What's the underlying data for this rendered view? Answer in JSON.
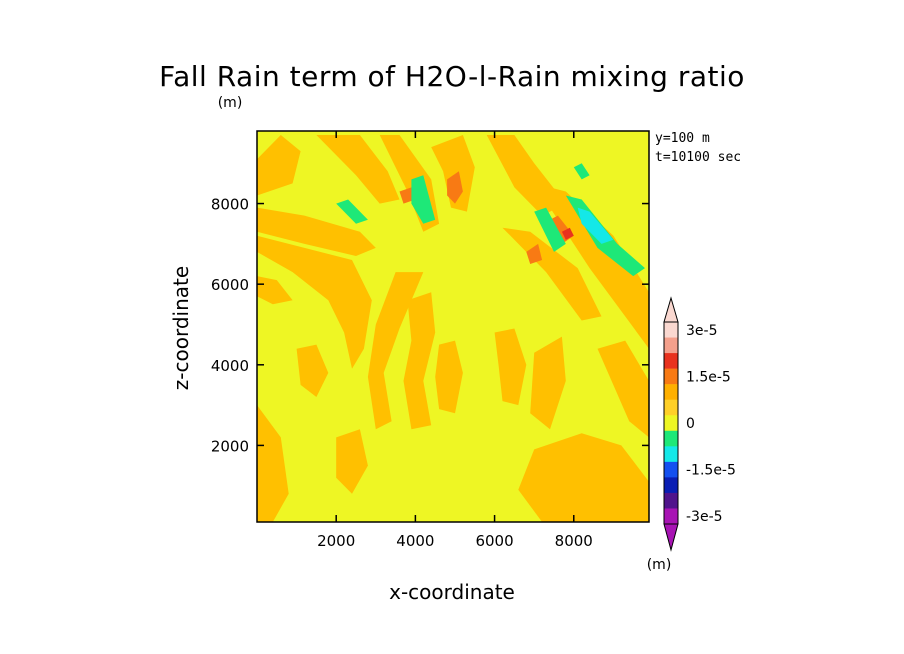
{
  "chart_data": {
    "type": "heatmap",
    "title": "Fall Rain term of H2O-l-Rain mixing ratio",
    "units_label": "(m)",
    "xlabel": "x-coordinate",
    "ylabel": "z-coordinate",
    "xlim": [
      0,
      9900
    ],
    "ylim": [
      100,
      9800
    ],
    "x_ticks": [
      2000,
      4000,
      6000,
      8000
    ],
    "y_ticks": [
      2000,
      4000,
      6000,
      8000
    ],
    "x_tick_labels": [
      "2000",
      "4000",
      "6000",
      "8000"
    ],
    "y_tick_labels": [
      "2000",
      "4000",
      "6000",
      "8000"
    ],
    "annotations": [
      "y=100 m",
      "t=10100 sec"
    ],
    "background_level_color": "#eef624",
    "colorbar": {
      "placement": "right",
      "unit": "(m)",
      "tick_labels": [
        "3e-5",
        "1.5e-5",
        "0",
        "-1.5e-5",
        "-3e-5"
      ],
      "tick_values": [
        3e-05,
        1.5e-05,
        0,
        -1.5e-05,
        -3e-05
      ],
      "levels_top_to_bottom": [
        {
          "color": "#fad8d0"
        },
        {
          "color": "#f4a08c"
        },
        {
          "color": "#e8321e"
        },
        {
          "color": "#f87a14"
        },
        {
          "color": "#ffb000"
        },
        {
          "color": "#ffd028"
        },
        {
          "color": "#eef624"
        },
        {
          "color": "#1ee878"
        },
        {
          "color": "#14e8e8"
        },
        {
          "color": "#1450f0"
        },
        {
          "color": "#0a1eb4"
        },
        {
          "color": "#50148c"
        },
        {
          "color": "#a814b4"
        }
      ]
    },
    "features": [
      {
        "level": "positive-small",
        "color": "#ffc000",
        "points": [
          [
            0,
            9100
          ],
          [
            600,
            9700
          ],
          [
            1100,
            9300
          ],
          [
            900,
            8500
          ],
          [
            0,
            8200
          ]
        ]
      },
      {
        "level": "positive-small",
        "color": "#ffc000",
        "points": [
          [
            0,
            7900
          ],
          [
            1200,
            7700
          ],
          [
            2600,
            7300
          ],
          [
            3000,
            6900
          ],
          [
            2500,
            6700
          ],
          [
            1200,
            7000
          ],
          [
            0,
            7300
          ]
        ]
      },
      {
        "level": "positive-small",
        "color": "#ffc000",
        "points": [
          [
            0,
            6800
          ],
          [
            900,
            6300
          ],
          [
            1800,
            5600
          ],
          [
            2200,
            4800
          ],
          [
            2400,
            3900
          ],
          [
            2700,
            4400
          ],
          [
            2900,
            5600
          ],
          [
            2400,
            6600
          ],
          [
            1200,
            6900
          ],
          [
            0,
            7200
          ]
        ]
      },
      {
        "level": "positive-small",
        "color": "#ffc000",
        "points": [
          [
            1500,
            9700
          ],
          [
            2600,
            9700
          ],
          [
            3300,
            8800
          ],
          [
            3600,
            8100
          ],
          [
            3100,
            8000
          ],
          [
            2500,
            8700
          ]
        ]
      },
      {
        "level": "positive-small",
        "color": "#ffc000",
        "points": [
          [
            3100,
            9700
          ],
          [
            3600,
            9700
          ],
          [
            4400,
            8600
          ],
          [
            4600,
            7500
          ],
          [
            4200,
            7300
          ],
          [
            3800,
            8300
          ]
        ]
      },
      {
        "level": "positive-small",
        "color": "#ffc000",
        "points": [
          [
            4400,
            9400
          ],
          [
            5200,
            9700
          ],
          [
            5500,
            8900
          ],
          [
            5300,
            7800
          ],
          [
            4900,
            7900
          ],
          [
            4700,
            8800
          ]
        ]
      },
      {
        "level": "positive-small",
        "color": "#ffc000",
        "points": [
          [
            5800,
            9700
          ],
          [
            6500,
            9700
          ],
          [
            7000,
            9000
          ],
          [
            7800,
            8000
          ],
          [
            7200,
            7700
          ],
          [
            6500,
            8400
          ]
        ]
      },
      {
        "level": "positive-small",
        "color": "#ffc000",
        "points": [
          [
            7000,
            8500
          ],
          [
            7800,
            8300
          ],
          [
            9000,
            7200
          ],
          [
            9900,
            5800
          ],
          [
            9900,
            4400
          ],
          [
            9300,
            5200
          ],
          [
            8400,
            6400
          ],
          [
            7600,
            7600
          ]
        ]
      },
      {
        "level": "positive-small",
        "color": "#ffc000",
        "points": [
          [
            6200,
            7400
          ],
          [
            6900,
            7300
          ],
          [
            8100,
            6400
          ],
          [
            8700,
            5200
          ],
          [
            8200,
            5100
          ],
          [
            7300,
            6300
          ]
        ]
      },
      {
        "level": "positive-small",
        "color": "#ffc000",
        "points": [
          [
            3500,
            6300
          ],
          [
            4200,
            6300
          ],
          [
            3600,
            4900
          ],
          [
            3200,
            3800
          ],
          [
            3400,
            2600
          ],
          [
            3000,
            2400
          ],
          [
            2800,
            3700
          ],
          [
            3000,
            5000
          ]
        ]
      },
      {
        "level": "positive-small",
        "color": "#ffc000",
        "points": [
          [
            3800,
            5600
          ],
          [
            4400,
            5800
          ],
          [
            4500,
            4800
          ],
          [
            4200,
            3600
          ],
          [
            4400,
            2500
          ],
          [
            3900,
            2400
          ],
          [
            3700,
            3600
          ],
          [
            3900,
            4600
          ]
        ]
      },
      {
        "level": "positive-small",
        "color": "#ffc000",
        "points": [
          [
            4600,
            4500
          ],
          [
            5000,
            4600
          ],
          [
            5200,
            3800
          ],
          [
            5000,
            2800
          ],
          [
            4600,
            2900
          ],
          [
            4500,
            3700
          ]
        ]
      },
      {
        "level": "positive-small",
        "color": "#ffc000",
        "points": [
          [
            6000,
            4800
          ],
          [
            6500,
            4900
          ],
          [
            6800,
            4000
          ],
          [
            6600,
            3000
          ],
          [
            6200,
            3100
          ],
          [
            6100,
            4000
          ]
        ]
      },
      {
        "level": "positive-small",
        "color": "#ffc000",
        "points": [
          [
            7000,
            4300
          ],
          [
            7700,
            4700
          ],
          [
            7800,
            3600
          ],
          [
            7400,
            2400
          ],
          [
            6900,
            2800
          ]
        ]
      },
      {
        "level": "positive-small",
        "color": "#ffc000",
        "points": [
          [
            6600,
            900
          ],
          [
            7000,
            1900
          ],
          [
            8200,
            2300
          ],
          [
            9200,
            2000
          ],
          [
            9900,
            1100
          ],
          [
            9900,
            100
          ],
          [
            7200,
            100
          ]
        ]
      },
      {
        "level": "positive-small",
        "color": "#ffc000",
        "points": [
          [
            0,
            3000
          ],
          [
            600,
            2200
          ],
          [
            800,
            800
          ],
          [
            400,
            100
          ],
          [
            0,
            100
          ]
        ]
      },
      {
        "level": "positive-small",
        "color": "#ffc000",
        "points": [
          [
            8600,
            4400
          ],
          [
            9300,
            4600
          ],
          [
            9900,
            3600
          ],
          [
            9900,
            2200
          ],
          [
            9400,
            2600
          ]
        ]
      },
      {
        "level": "positive-small",
        "color": "#ffc000",
        "points": [
          [
            2000,
            2200
          ],
          [
            2600,
            2400
          ],
          [
            2800,
            1500
          ],
          [
            2400,
            800
          ],
          [
            2000,
            1200
          ]
        ]
      },
      {
        "level": "positive-medium",
        "color": "#f87a14",
        "points": [
          [
            4800,
            8600
          ],
          [
            5100,
            8800
          ],
          [
            5200,
            8300
          ],
          [
            5000,
            8000
          ],
          [
            4800,
            8200
          ]
        ]
      },
      {
        "level": "positive-medium",
        "color": "#f87a14",
        "points": [
          [
            3600,
            8300
          ],
          [
            3900,
            8400
          ],
          [
            4000,
            8100
          ],
          [
            3700,
            8000
          ]
        ]
      },
      {
        "level": "positive-medium",
        "color": "#f87a14",
        "points": [
          [
            7200,
            7500
          ],
          [
            7600,
            7700
          ],
          [
            8000,
            7200
          ],
          [
            7700,
            7000
          ]
        ]
      },
      {
        "level": "positive-medium",
        "color": "#f87a14",
        "points": [
          [
            6800,
            6800
          ],
          [
            7100,
            7000
          ],
          [
            7200,
            6600
          ],
          [
            6900,
            6500
          ]
        ]
      },
      {
        "level": "positive-large",
        "color": "#e8321e",
        "points": [
          [
            7700,
            7300
          ],
          [
            7900,
            7400
          ],
          [
            8000,
            7200
          ],
          [
            7800,
            7100
          ]
        ]
      },
      {
        "level": "negative-small",
        "color": "#1ee878",
        "points": [
          [
            2000,
            8000
          ],
          [
            2300,
            8100
          ],
          [
            2800,
            7600
          ],
          [
            2500,
            7500
          ]
        ]
      },
      {
        "level": "negative-small",
        "color": "#1ee878",
        "points": [
          [
            3900,
            8600
          ],
          [
            4200,
            8700
          ],
          [
            4500,
            7600
          ],
          [
            4200,
            7500
          ],
          [
            3900,
            8000
          ]
        ]
      },
      {
        "level": "negative-small",
        "color": "#1ee878",
        "points": [
          [
            7000,
            7800
          ],
          [
            7300,
            7900
          ],
          [
            7800,
            7000
          ],
          [
            7500,
            6800
          ]
        ]
      },
      {
        "level": "negative-small",
        "color": "#1ee878",
        "points": [
          [
            7800,
            8200
          ],
          [
            8200,
            8100
          ],
          [
            9100,
            7000
          ],
          [
            9800,
            6400
          ],
          [
            9500,
            6200
          ],
          [
            8600,
            6900
          ]
        ]
      },
      {
        "level": "negative-small",
        "color": "#1ee878",
        "points": [
          [
            8000,
            8900
          ],
          [
            8200,
            9000
          ],
          [
            8400,
            8700
          ],
          [
            8200,
            8600
          ]
        ]
      },
      {
        "level": "negative-medium",
        "color": "#14e8e8",
        "points": [
          [
            8100,
            7900
          ],
          [
            8400,
            7800
          ],
          [
            9000,
            7100
          ],
          [
            8700,
            7000
          ],
          [
            8200,
            7500
          ]
        ]
      },
      {
        "level": "positive-small",
        "color": "#ffc000",
        "points": [
          [
            0,
            6200
          ],
          [
            500,
            6100
          ],
          [
            900,
            5600
          ],
          [
            400,
            5500
          ],
          [
            0,
            5700
          ]
        ]
      },
      {
        "level": "positive-small",
        "color": "#ffc000",
        "points": [
          [
            1000,
            4400
          ],
          [
            1500,
            4500
          ],
          [
            1800,
            3800
          ],
          [
            1500,
            3200
          ],
          [
            1100,
            3500
          ]
        ]
      }
    ]
  }
}
